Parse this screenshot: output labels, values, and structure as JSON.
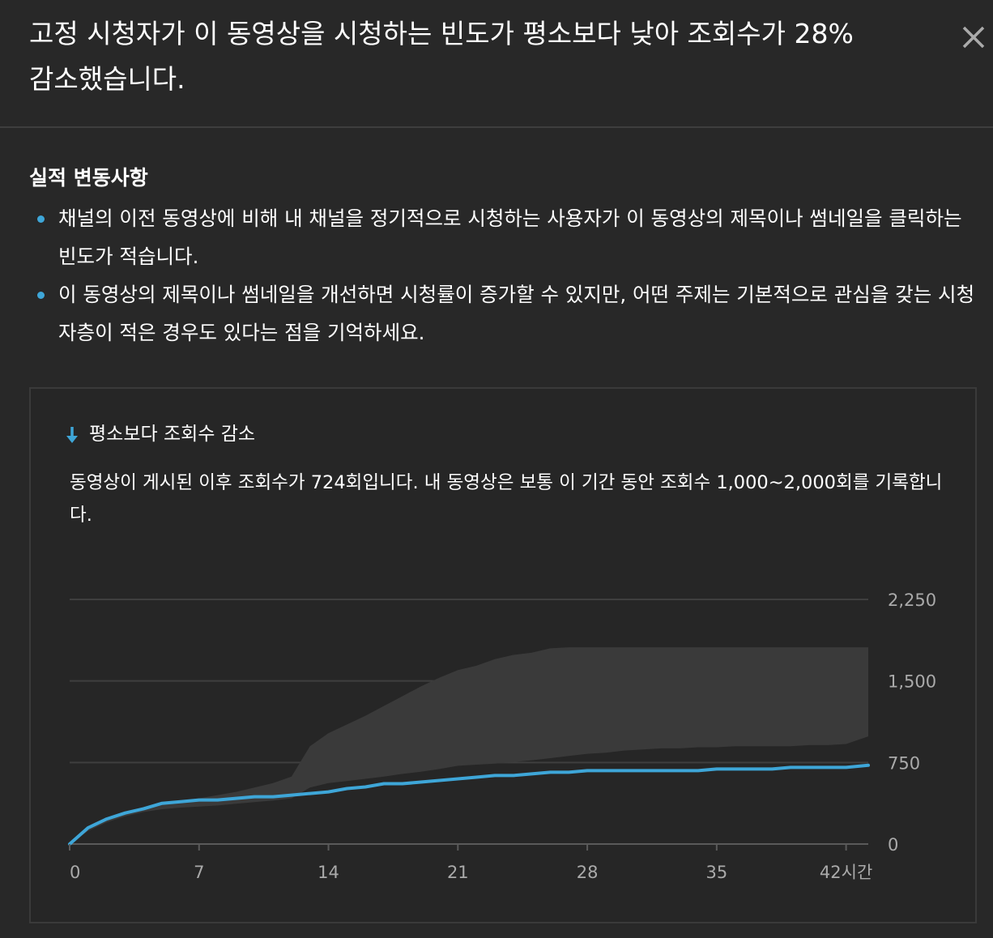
{
  "header": {
    "title": "고정 시청자가 이 동영상을 시청하는 빈도가 평소보다 낮아 조회수가 28% 감소했습니다."
  },
  "section": {
    "heading": "실적 변동사항",
    "bullets": [
      "채널의 이전 동영상에 비해 내 채널을 정기적으로 시청하는 사용자가 이 동영상의 제목이나 썸네일을 클릭하는 빈도가 적습니다.",
      "이 동영상의 제목이나 썸네일을 개선하면 시청률이 증가할 수 있지만, 어떤 주제는 기본적으로 관심을 갖는 시청자층이 적은 경우도 있다는 점을 기억하세요."
    ]
  },
  "card": {
    "title": "평소보다 조회수 감소",
    "description": "동영상이 게시된 이후 조회수가 724회입니다. 내 동영상은 보통 이 기간 동안 조회수 1,000~2,000회를 기록합니다."
  },
  "colors": {
    "background": "#282828",
    "accent": "#3ea6d8",
    "typical_range": "#3a3a3a"
  },
  "icons": {
    "close": "close-icon",
    "trend": "arrow-down-icon"
  },
  "chart_data": {
    "type": "area",
    "x_ticks": [
      "0",
      "7",
      "14",
      "21",
      "28",
      "35",
      "42시간"
    ],
    "x_tick_values": [
      0,
      7,
      14,
      21,
      28,
      35,
      42
    ],
    "y_ticks": [
      "0",
      "750",
      "1,500",
      "2,250"
    ],
    "y_tick_values": [
      0,
      750,
      1500,
      2250
    ],
    "xlim": [
      0,
      43.2
    ],
    "ylim": [
      0,
      2250
    ],
    "series": [
      {
        "role": "this-video",
        "color": "#3ea6d8",
        "x": [
          0,
          1,
          2,
          3,
          4,
          5,
          6,
          7,
          8,
          9,
          10,
          11,
          12,
          13,
          14,
          15,
          16,
          17,
          18,
          19,
          20,
          21,
          22,
          23,
          24,
          25,
          26,
          27,
          28,
          29,
          30,
          31,
          32,
          33,
          34,
          35,
          36,
          37,
          38,
          39,
          40,
          41,
          42,
          43.2
        ],
        "y": [
          0,
          150,
          230,
          285,
          325,
          375,
          390,
          405,
          405,
          420,
          435,
          435,
          450,
          465,
          480,
          510,
          525,
          555,
          555,
          570,
          585,
          600,
          615,
          630,
          630,
          645,
          660,
          660,
          675,
          675,
          675,
          675,
          675,
          675,
          675,
          690,
          690,
          690,
          690,
          705,
          705,
          705,
          705,
          724
        ]
      }
    ],
    "typical_range": {
      "role": "typical-range",
      "x": [
        0,
        1,
        2,
        3,
        4,
        5,
        6,
        7,
        8,
        9,
        10,
        11,
        12,
        13,
        14,
        15,
        16,
        17,
        18,
        19,
        20,
        21,
        22,
        23,
        24,
        25,
        26,
        27,
        28,
        29,
        30,
        31,
        32,
        33,
        34,
        35,
        36,
        37,
        38,
        39,
        40,
        41,
        42,
        43.2
      ],
      "low": [
        0,
        120,
        200,
        255,
        295,
        320,
        335,
        345,
        355,
        370,
        385,
        400,
        420,
        520,
        560,
        580,
        600,
        620,
        645,
        665,
        690,
        720,
        730,
        740,
        755,
        770,
        790,
        810,
        830,
        840,
        860,
        870,
        880,
        880,
        890,
        890,
        900,
        900,
        900,
        900,
        910,
        910,
        920,
        990
      ],
      "high": [
        0,
        130,
        230,
        290,
        340,
        370,
        400,
        420,
        450,
        480,
        520,
        560,
        620,
        900,
        1020,
        1100,
        1180,
        1270,
        1360,
        1450,
        1530,
        1600,
        1640,
        1700,
        1740,
        1760,
        1800,
        1810,
        1810,
        1810,
        1810,
        1810,
        1810,
        1810,
        1810,
        1810,
        1810,
        1810,
        1810,
        1810,
        1810,
        1810,
        1810,
        1810
      ]
    },
    "grid": true
  }
}
